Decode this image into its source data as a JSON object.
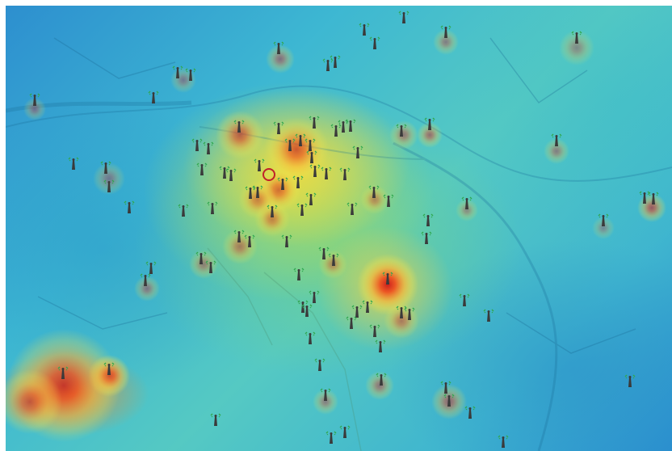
{
  "map": {
    "colors": {
      "low": "#2b8fcf",
      "mid_low": "#55c9c3",
      "mid": "#b8dc5a",
      "mid_high": "#f5d23c",
      "high": "#e84a1e",
      "marker": "#c0202a"
    },
    "icon": "cell-tower-icon",
    "selected_marker_icon": "location-circle-icon"
  }
}
